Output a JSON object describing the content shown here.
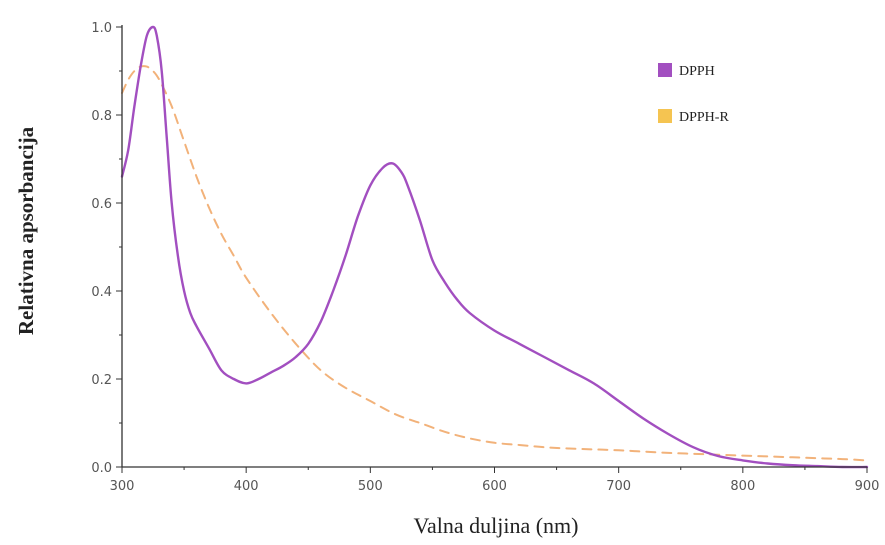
{
  "chart_data": {
    "type": "line",
    "xlabel": "Valna duljina (nm)",
    "ylabel": "Relativna apsorbancija",
    "xlim": [
      300,
      900
    ],
    "ylim": [
      0.0,
      1.0
    ],
    "x_ticks": [
      "300",
      "400",
      "500",
      "600",
      "700",
      "800",
      "900"
    ],
    "y_ticks": [
      "0.0",
      "0.2",
      "0.4",
      "0.6",
      "0.8",
      "1.0"
    ],
    "grid": false,
    "legend_position": "top-right",
    "series": [
      {
        "name": "DPPH",
        "color": "#a24fc0",
        "style": "solid",
        "x": [
          300,
          305,
          310,
          315,
          320,
          325,
          328,
          332,
          336,
          340,
          345,
          350,
          355,
          360,
          370,
          380,
          390,
          400,
          410,
          420,
          430,
          440,
          450,
          460,
          470,
          480,
          490,
          500,
          510,
          518,
          525,
          530,
          540,
          550,
          560,
          570,
          580,
          600,
          620,
          640,
          660,
          680,
          700,
          720,
          740,
          760,
          780,
          800,
          820,
          840,
          860,
          880,
          900
        ],
        "y": [
          0.66,
          0.72,
          0.82,
          0.91,
          0.98,
          1.0,
          0.98,
          0.9,
          0.75,
          0.6,
          0.48,
          0.4,
          0.35,
          0.32,
          0.27,
          0.22,
          0.2,
          0.19,
          0.2,
          0.215,
          0.23,
          0.25,
          0.28,
          0.33,
          0.4,
          0.48,
          0.57,
          0.64,
          0.68,
          0.69,
          0.67,
          0.64,
          0.56,
          0.47,
          0.42,
          0.38,
          0.35,
          0.31,
          0.28,
          0.25,
          0.22,
          0.19,
          0.15,
          0.11,
          0.075,
          0.045,
          0.025,
          0.015,
          0.008,
          0.004,
          0.002,
          0.0,
          0.0
        ]
      },
      {
        "name": "DPPH-R",
        "color": "#f5c451",
        "style": "dashed",
        "x": [
          300,
          305,
          310,
          315,
          320,
          325,
          330,
          340,
          350,
          360,
          370,
          380,
          390,
          400,
          420,
          440,
          460,
          480,
          500,
          520,
          540,
          560,
          580,
          600,
          620,
          640,
          660,
          680,
          700,
          720,
          740,
          760,
          780,
          800,
          820,
          840,
          860,
          880,
          900
        ],
        "y": [
          0.85,
          0.88,
          0.9,
          0.91,
          0.91,
          0.9,
          0.88,
          0.82,
          0.74,
          0.66,
          0.59,
          0.53,
          0.48,
          0.43,
          0.35,
          0.28,
          0.22,
          0.18,
          0.15,
          0.12,
          0.1,
          0.08,
          0.065,
          0.055,
          0.05,
          0.045,
          0.042,
          0.04,
          0.038,
          0.035,
          0.032,
          0.03,
          0.028,
          0.026,
          0.024,
          0.022,
          0.02,
          0.018,
          0.015
        ]
      }
    ]
  }
}
